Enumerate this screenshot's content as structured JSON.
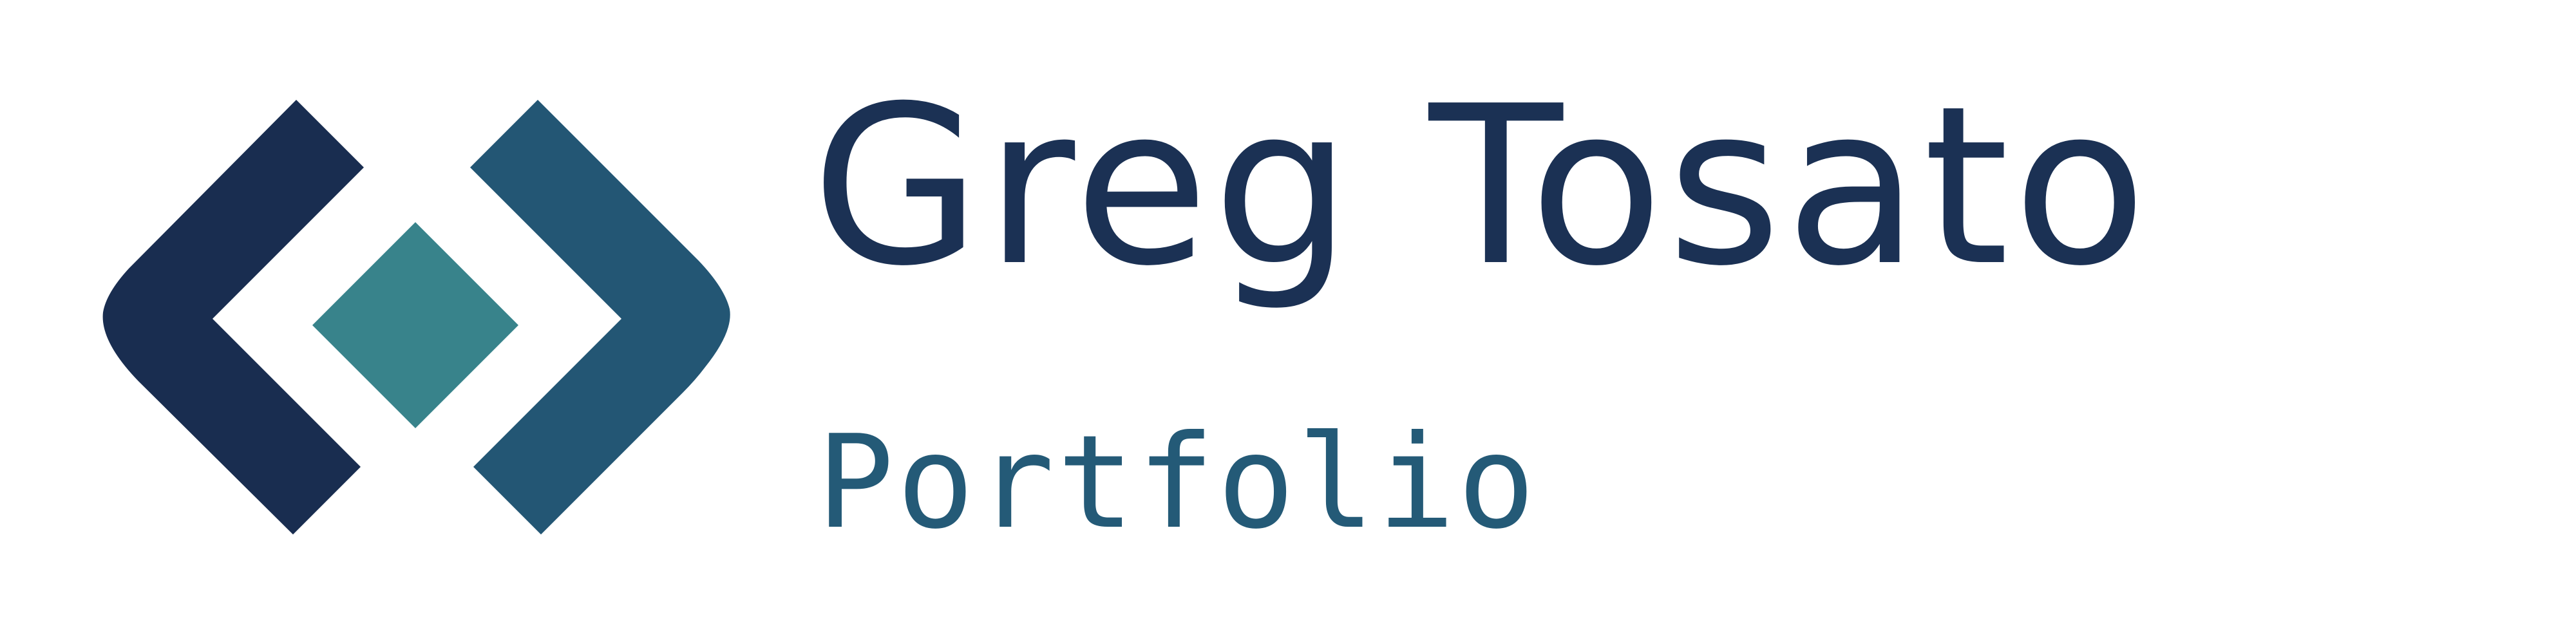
{
  "brand": {
    "name": "Greg Tosato",
    "tagline": "Portfolio"
  },
  "logo": {
    "icon": "code-brackets-diamond-icon",
    "colors": {
      "left_bracket": "#192d50",
      "right_bracket": "#235674",
      "diamond": "#38838b"
    }
  },
  "colors": {
    "title": "#1b3154",
    "subtitle": "#245a77",
    "background": "#ffffff"
  }
}
